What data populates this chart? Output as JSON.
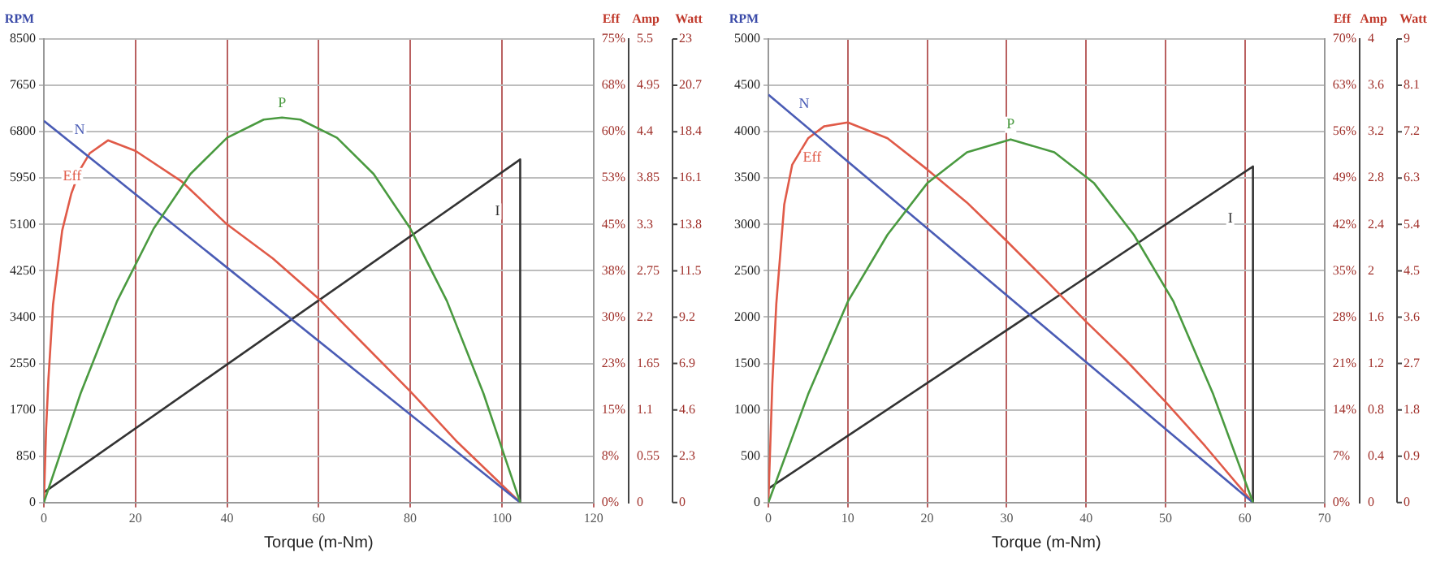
{
  "chart_data": [
    {
      "type": "line",
      "xlabel": "Torque (m-Nm)",
      "ylabel": "RPM",
      "y2label": "Eff",
      "y3label": "Amp",
      "grid": true,
      "legend": false,
      "marker": "none",
      "line_style": "solid",
      "xlim": [
        0,
        120
      ],
      "xticks": [
        0,
        20,
        40,
        60,
        80,
        100,
        120
      ],
      "ylim": [
        0,
        8500
      ],
      "yticks": [
        0,
        850,
        1700,
        2550,
        3400,
        4250,
        5100,
        5950,
        6800,
        7650,
        8500
      ],
      "y2lim": [
        0,
        75
      ],
      "y2ticks": [
        {
          "value": 0,
          "label": "0%"
        },
        {
          "value": 7.5,
          "label": "8%"
        },
        {
          "value": 15,
          "label": "15%"
        },
        {
          "value": 22.5,
          "label": "23%"
        },
        {
          "value": 30,
          "label": "30%"
        },
        {
          "value": 37.5,
          "label": "38%"
        },
        {
          "value": 45,
          "label": "45%"
        },
        {
          "value": 52.5,
          "label": "53%"
        },
        {
          "value": 60,
          "label": "60%"
        },
        {
          "value": 67.5,
          "label": "68%"
        },
        {
          "value": 75,
          "label": "75%"
        }
      ],
      "y3lim": [
        0,
        5.5
      ],
      "y3ticks": [
        0,
        0.55,
        1.1,
        1.65,
        2.2,
        2.75,
        3.3,
        3.85,
        4.4,
        4.95,
        5.5
      ],
      "series": [
        {
          "name": "N",
          "color": "#4a5cb5",
          "x": [
            0,
            104
          ],
          "values": [
            7000,
            0
          ]
        },
        {
          "name": "Eff",
          "color": "#e05a48",
          "axis": "y2",
          "x": [
            0,
            0.5,
            1,
            2,
            4,
            6,
            8,
            10,
            14,
            20,
            30,
            40,
            50,
            60,
            70,
            80,
            90,
            104
          ],
          "values": [
            0,
            12,
            20,
            32,
            44,
            50,
            54,
            56.5,
            58.6,
            56.9,
            52,
            45,
            39.5,
            33,
            25.5,
            18,
            10,
            0
          ]
        },
        {
          "name": "I",
          "color": "#333333",
          "axis": "y3",
          "x": [
            0,
            104,
            104
          ],
          "values": [
            0.12,
            4.07,
            0
          ]
        }
      ]
    },
    {
      "type": "line",
      "ylabel": "Watt",
      "tick_labels": "y",
      "marker": "none",
      "line_style": "solid",
      "xlim": [
        0,
        120
      ],
      "ylim": [
        0,
        23
      ],
      "yticks": [
        0,
        2.3,
        4.6,
        6.9,
        9.2,
        11.5,
        13.8,
        16.1,
        18.4,
        20.7,
        23
      ],
      "series": [
        {
          "name": "P",
          "color": "#4a9a40",
          "x": [
            0,
            8,
            16,
            24,
            32,
            40,
            48,
            52,
            56,
            64,
            72,
            80,
            88,
            96,
            104
          ],
          "values": [
            0,
            5.4,
            10,
            13.6,
            16.3,
            18.1,
            19,
            19.1,
            19,
            18.1,
            16.3,
            13.6,
            10,
            5.4,
            0
          ]
        }
      ]
    },
    {
      "type": "line",
      "xlabel": "Torque (m-Nm)",
      "ylabel": "RPM",
      "y2label": "Eff",
      "y3label": "Amp",
      "grid": true,
      "legend": false,
      "marker": "none",
      "line_style": "solid",
      "xlim": [
        0,
        70
      ],
      "xticks": [
        0,
        10,
        20,
        30,
        40,
        50,
        60,
        70
      ],
      "ylim": [
        0,
        5000
      ],
      "yticks": [
        0,
        500,
        1000,
        1500,
        2000,
        2500,
        3000,
        3500,
        4000,
        4500,
        5000
      ],
      "y2lim": [
        0,
        70
      ],
      "y2ticks": [
        {
          "value": 0,
          "label": "0%"
        },
        {
          "value": 7,
          "label": "7%"
        },
        {
          "value": 14,
          "label": "14%"
        },
        {
          "value": 21,
          "label": "21%"
        },
        {
          "value": 28,
          "label": "28%"
        },
        {
          "value": 35,
          "label": "35%"
        },
        {
          "value": 42,
          "label": "42%"
        },
        {
          "value": 49,
          "label": "49%"
        },
        {
          "value": 56,
          "label": "56%"
        },
        {
          "value": 63,
          "label": "63%"
        },
        {
          "value": 70,
          "label": "70%"
        }
      ],
      "y3lim": [
        0,
        4
      ],
      "y3ticks": [
        0,
        0.4,
        0.8,
        1.2,
        1.6,
        2,
        2.4,
        2.8,
        3.2,
        3.6,
        4
      ],
      "series": [
        {
          "name": "N",
          "color": "#4a5cb5",
          "x": [
            0,
            61
          ],
          "values": [
            4400,
            0
          ]
        },
        {
          "name": "Eff",
          "color": "#e05a48",
          "axis": "y2",
          "x": [
            0,
            0.5,
            1,
            2,
            3,
            5,
            7,
            10,
            15,
            20,
            25,
            30,
            35,
            40,
            45,
            50,
            55,
            61
          ],
          "values": [
            0,
            18,
            30,
            45,
            51,
            55,
            56.8,
            57.4,
            55,
            50.3,
            45.3,
            39.5,
            33.5,
            27.3,
            21.5,
            15.2,
            8.5,
            0
          ]
        },
        {
          "name": "I",
          "color": "#333333",
          "axis": "y3",
          "x": [
            0,
            61,
            61
          ],
          "values": [
            0.12,
            2.9,
            0
          ]
        }
      ]
    },
    {
      "type": "line",
      "ylabel": "Watt",
      "tick_labels": "y",
      "marker": "none",
      "line_style": "solid",
      "xlim": [
        0,
        70
      ],
      "ylim": [
        0,
        9
      ],
      "yticks": [
        0,
        0.9,
        1.8,
        2.7,
        3.6,
        4.5,
        5.4,
        6.3,
        7.2,
        8.1,
        9
      ],
      "series": [
        {
          "name": "P",
          "color": "#4a9a40",
          "x": [
            0,
            5,
            10,
            15,
            20,
            25,
            30.5,
            36,
            41,
            46,
            51,
            56,
            61
          ],
          "values": [
            0,
            2.1,
            3.9,
            5.2,
            6.2,
            6.8,
            7.05,
            6.8,
            6.2,
            5.2,
            3.9,
            2.1,
            0
          ]
        }
      ]
    }
  ]
}
